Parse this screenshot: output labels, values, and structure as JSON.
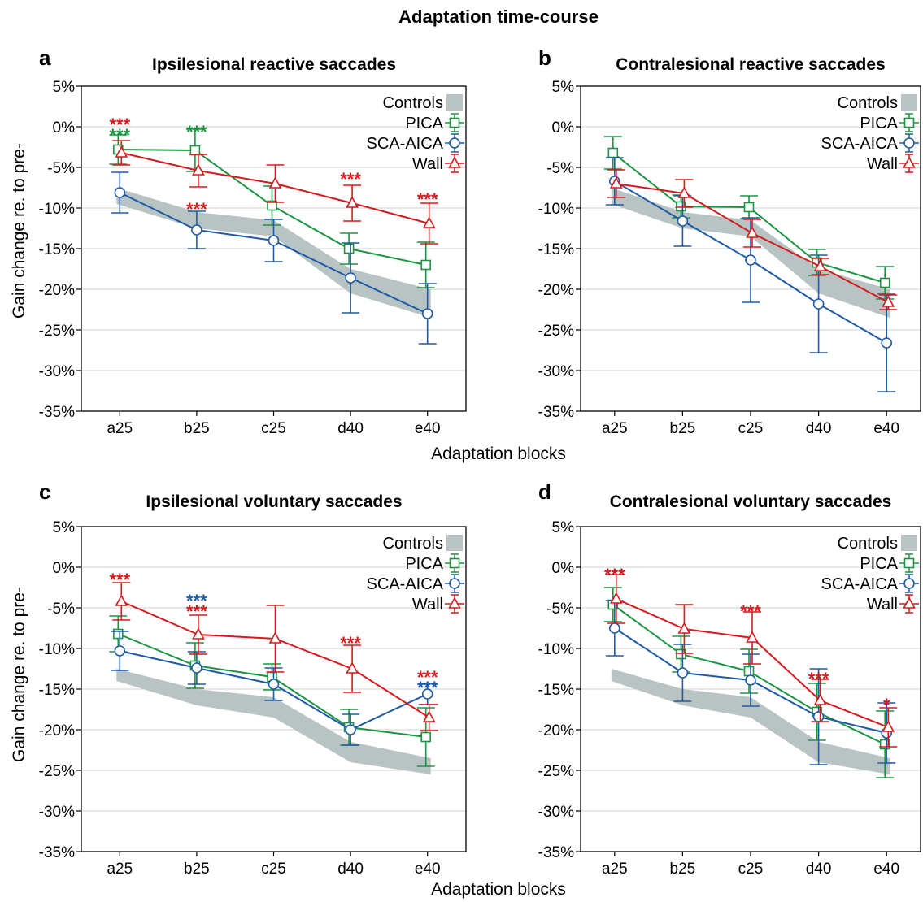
{
  "figure": {
    "title": "Adaptation time-course",
    "xlabel": "Adaptation blocks",
    "ylabel": "Gain change re. to pre-"
  },
  "colors": {
    "controls": "#b8c4c4",
    "PICA": "#1a9641",
    "SCA-AICA": "#1f5aa6",
    "Wall": "#d7191c",
    "axis": "#000000",
    "grid": "#d0d0d0"
  },
  "chart_data": [
    {
      "type": "line",
      "panel": "a",
      "title": "Ipsilesional reactive saccades",
      "categories": [
        "a25",
        "b25",
        "c25",
        "d40",
        "e40"
      ],
      "ylim": [
        -35,
        5
      ],
      "yticks": [
        5,
        0,
        -5,
        -10,
        -15,
        -20,
        -25,
        -30,
        -35
      ],
      "ytick_labels": [
        "5%",
        "0%",
        "-5%",
        "-10%",
        "-15%",
        "-20%",
        "-25%",
        "-30%",
        "-35%"
      ],
      "grid": true,
      "legend": [
        "Controls",
        "PICA",
        "SCA-AICA",
        "Wall"
      ],
      "legend_position": "top-right",
      "controls_band": {
        "name": "Controls",
        "upper": [
          -7.5,
          -10.5,
          -11.5,
          -17.5,
          -20
        ],
        "lower": [
          -9.5,
          -12.5,
          -13.5,
          -20.5,
          -23.5
        ]
      },
      "series": [
        {
          "name": "PICA",
          "marker": "square",
          "values": [
            -2.8,
            -2.9,
            -9.7,
            -15.0,
            -17.0
          ],
          "err": [
            1.8,
            2.6,
            2.4,
            1.9,
            2.8
          ]
        },
        {
          "name": "SCA-AICA",
          "marker": "circle",
          "values": [
            -8.1,
            -12.7,
            -14.0,
            -18.6,
            -23.0
          ],
          "err": [
            2.5,
            2.3,
            2.6,
            4.3,
            3.7
          ]
        },
        {
          "name": "Wall",
          "marker": "triangle",
          "values": [
            -3.2,
            -5.4,
            -7.0,
            -9.4,
            -11.9
          ],
          "err": [
            1.5,
            2.0,
            2.3,
            2.2,
            2.5
          ]
        }
      ],
      "annotations": [
        {
          "text": "***",
          "category": "a25",
          "y": 0.8,
          "series": "Wall"
        },
        {
          "text": "***",
          "category": "a25",
          "y": -0.5,
          "series": "PICA"
        },
        {
          "text": "***",
          "category": "b25",
          "y": -0.1,
          "series": "PICA"
        },
        {
          "text": "***",
          "category": "b25",
          "y": -9.6,
          "series": "Wall"
        },
        {
          "text": "***",
          "category": "d40",
          "y": -5.9,
          "series": "Wall"
        },
        {
          "text": "***",
          "category": "e40",
          "y": -8.4,
          "series": "Wall"
        }
      ]
    },
    {
      "type": "line",
      "panel": "b",
      "title": "Contralesional reactive saccades",
      "categories": [
        "a25",
        "b25",
        "c25",
        "d40",
        "e40"
      ],
      "ylim": [
        -35,
        5
      ],
      "yticks": [
        5,
        0,
        -5,
        -10,
        -15,
        -20,
        -25,
        -30,
        -35
      ],
      "ytick_labels": [
        "5%",
        "0%",
        "-5%",
        "-10%",
        "-15%",
        "-20%",
        "-25%",
        "-30%",
        "-35%"
      ],
      "grid": true,
      "legend": [
        "Controls",
        "PICA",
        "SCA-AICA",
        "Wall"
      ],
      "legend_position": "top-right",
      "controls_band": {
        "name": "Controls",
        "upper": [
          -7.5,
          -10.5,
          -11.5,
          -17.5,
          -20
        ],
        "lower": [
          -9.5,
          -12.5,
          -13.5,
          -20.5,
          -23.5
        ]
      },
      "series": [
        {
          "name": "PICA",
          "marker": "square",
          "values": [
            -3.2,
            -9.8,
            -9.9,
            -16.7,
            -19.2
          ],
          "err": [
            2.0,
            1.4,
            1.4,
            1.6,
            2.0
          ]
        },
        {
          "name": "SCA-AICA",
          "marker": "circle",
          "values": [
            -6.7,
            -11.6,
            -16.4,
            -21.8,
            -26.6
          ],
          "err": [
            2.9,
            3.1,
            5.2,
            6.0,
            6.0
          ]
        },
        {
          "name": "Wall",
          "marker": "triangle",
          "values": [
            -7.0,
            -8.2,
            -13.1,
            -17.2,
            -21.6
          ],
          "err": [
            1.7,
            1.7,
            1.7,
            1.0,
            0.9
          ]
        }
      ],
      "annotations": []
    },
    {
      "type": "line",
      "panel": "c",
      "title": "Ipsilesional voluntary saccades",
      "categories": [
        "a25",
        "b25",
        "c25",
        "d40",
        "e40"
      ],
      "ylim": [
        -35,
        5
      ],
      "yticks": [
        5,
        0,
        -5,
        -10,
        -15,
        -20,
        -25,
        -30,
        -35
      ],
      "ytick_labels": [
        "5%",
        "0%",
        "-5%",
        "-10%",
        "-15%",
        "-20%",
        "-25%",
        "-30%",
        "-35%"
      ],
      "grid": true,
      "legend": [
        "Controls",
        "PICA",
        "SCA-AICA",
        "Wall"
      ],
      "legend_position": "top-right",
      "controls_band": {
        "name": "Controls",
        "upper": [
          -12.5,
          -15,
          -16,
          -21.5,
          -23.5
        ],
        "lower": [
          -14,
          -17,
          -18.5,
          -24,
          -25.5
        ]
      },
      "series": [
        {
          "name": "PICA",
          "marker": "square",
          "values": [
            -8.2,
            -12.1,
            -13.5,
            -19.7,
            -20.9
          ],
          "err": [
            2.2,
            2.8,
            1.6,
            2.2,
            3.6
          ]
        },
        {
          "name": "SCA-AICA",
          "marker": "circle",
          "values": [
            -10.3,
            -12.4,
            -14.4,
            -20.0,
            -15.6
          ],
          "err": [
            2.4,
            2.0,
            2.0,
            1.9,
            1.3
          ]
        },
        {
          "name": "Wall",
          "marker": "triangle",
          "values": [
            -4.2,
            -8.3,
            -8.8,
            -12.5,
            -18.5
          ],
          "err": [
            2.3,
            2.4,
            4.1,
            2.9,
            1.6
          ]
        }
      ],
      "annotations": [
        {
          "text": "***",
          "category": "a25",
          "y": -1.0,
          "series": "Wall"
        },
        {
          "text": "***",
          "category": "b25",
          "y": -3.6,
          "series": "SCA-AICA"
        },
        {
          "text": "***",
          "category": "b25",
          "y": -4.9,
          "series": "Wall"
        },
        {
          "text": "***",
          "category": "d40",
          "y": -8.8,
          "series": "Wall"
        },
        {
          "text": "***",
          "category": "e40",
          "y": -13.0,
          "series": "Wall"
        },
        {
          "text": "***",
          "category": "e40",
          "y": -14.3,
          "series": "SCA-AICA"
        }
      ]
    },
    {
      "type": "line",
      "panel": "d",
      "title": "Contralesional voluntary saccades",
      "categories": [
        "a25",
        "b25",
        "c25",
        "d40",
        "e40"
      ],
      "ylim": [
        -35,
        5
      ],
      "yticks": [
        5,
        0,
        -5,
        -10,
        -15,
        -20,
        -25,
        -30,
        -35
      ],
      "ytick_labels": [
        "5%",
        "0%",
        "-5%",
        "-10%",
        "-15%",
        "-20%",
        "-25%",
        "-30%",
        "-35%"
      ],
      "grid": true,
      "legend": [
        "Controls",
        "PICA",
        "SCA-AICA",
        "Wall"
      ],
      "legend_position": "top-right",
      "controls_band": {
        "name": "Controls",
        "upper": [
          -12.5,
          -15,
          -16,
          -21.5,
          -23.5
        ],
        "lower": [
          -14,
          -17,
          -18.5,
          -24,
          -25.5
        ]
      },
      "series": [
        {
          "name": "PICA",
          "marker": "square",
          "values": [
            -4.6,
            -10.7,
            -12.8,
            -17.8,
            -21.8
          ],
          "err": [
            2.1,
            2.2,
            2.7,
            3.5,
            4.1
          ]
        },
        {
          "name": "SCA-AICA",
          "marker": "circle",
          "values": [
            -7.5,
            -13.0,
            -13.9,
            -18.4,
            -20.4
          ],
          "err": [
            3.4,
            3.5,
            3.2,
            5.9,
            3.7
          ]
        },
        {
          "name": "Wall",
          "marker": "triangle",
          "values": [
            -3.9,
            -7.6,
            -8.7,
            -16.4,
            -19.7
          ],
          "err": [
            3.0,
            3.0,
            3.2,
            2.6,
            2.4
          ]
        }
      ],
      "annotations": [
        {
          "text": "***",
          "category": "a25",
          "y": -0.4,
          "series": "Wall"
        },
        {
          "text": "***",
          "category": "c25",
          "y": -4.9,
          "series": "Wall"
        },
        {
          "text": "***",
          "category": "d40",
          "y": -13.2,
          "series": "Wall"
        },
        {
          "text": "*",
          "category": "e40",
          "y": -16.4,
          "series": "Wall"
        }
      ]
    }
  ]
}
